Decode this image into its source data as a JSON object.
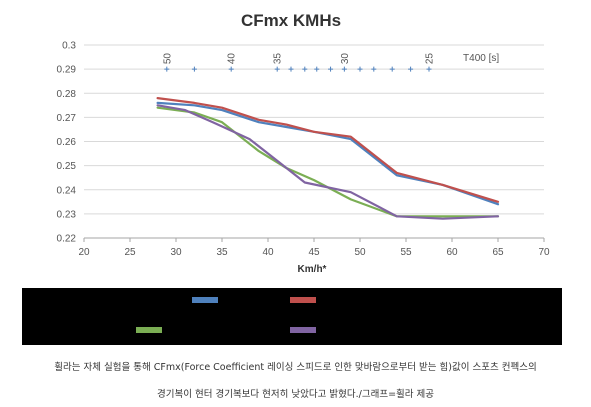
{
  "chart_data": {
    "type": "line",
    "title": "CFmx KMHs",
    "xlabel": "Km/h*",
    "ylabel": "",
    "xlim": [
      20,
      70
    ],
    "ylim": [
      0.22,
      0.3
    ],
    "x_ticks": [
      20,
      25,
      30,
      35,
      40,
      45,
      50,
      55,
      60,
      65,
      70
    ],
    "y_ticks": [
      0.22,
      0.23,
      0.24,
      0.25,
      0.26,
      0.27,
      0.28,
      0.29,
      0.3
    ],
    "x_tick_labels": [
      "20",
      "25",
      "30",
      "35",
      "40",
      "45",
      "50",
      "55",
      "60",
      "65",
      "70"
    ],
    "y_tick_labels": [
      "0.22",
      "0.23",
      "0.24",
      "0.25",
      "0.26",
      "0.27",
      "0.28",
      "0.29",
      "0.3"
    ],
    "grid": "horizontal",
    "legend_placement": "below",
    "series": [
      {
        "color": "#4f81bd",
        "x": [
          28,
          32,
          35,
          39,
          42,
          45,
          49,
          54,
          59,
          65
        ],
        "y": [
          0.276,
          0.275,
          0.273,
          0.268,
          0.266,
          0.264,
          0.261,
          0.246,
          0.242,
          0.234
        ]
      },
      {
        "color": "#c0504d",
        "x": [
          28,
          32,
          35,
          39,
          42,
          45,
          49,
          54,
          59,
          65
        ],
        "y": [
          0.278,
          0.276,
          0.274,
          0.269,
          0.267,
          0.264,
          0.262,
          0.247,
          0.242,
          0.235
        ]
      },
      {
        "color": "#7bae54",
        "x": [
          28,
          32,
          35,
          39,
          42,
          45,
          49,
          54,
          59,
          65
        ],
        "y": [
          0.274,
          0.272,
          0.268,
          0.256,
          0.249,
          0.244,
          0.236,
          0.229,
          0.229,
          0.229
        ]
      },
      {
        "color": "#8064a2",
        "x": [
          28,
          31,
          34,
          38,
          41,
          44,
          49,
          54,
          59,
          65
        ],
        "y": [
          0.275,
          0.273,
          0.268,
          0.261,
          0.252,
          0.243,
          0.239,
          0.229,
          0.228,
          0.229
        ]
      }
    ],
    "annotation_row": {
      "label": "T400 [s]",
      "y": 0.29,
      "markers": [
        29,
        32,
        36,
        41,
        42.5,
        44,
        45.3,
        46.8,
        48.3,
        50,
        51.5,
        53.5,
        55.5,
        57.5
      ],
      "texts": [
        {
          "text": "50",
          "x": 29
        },
        {
          "text": "40",
          "x": 36
        },
        {
          "text": "35",
          "x": 41
        },
        {
          "text": "30",
          "x": 48.3
        },
        {
          "text": "25",
          "x": 57.5
        }
      ]
    }
  },
  "caption": {
    "line1": "휠라는 자체 실험을 통해 CFmx(Force Coefficient 레이싱 스피드로 인한 맞바람으로부터 받는 힘)값이 스포츠 컨펙스의",
    "line2": "경기복이 현터 경기복보다 현저히 낮았다고 밝혔다./그래프=휠라 제공"
  }
}
